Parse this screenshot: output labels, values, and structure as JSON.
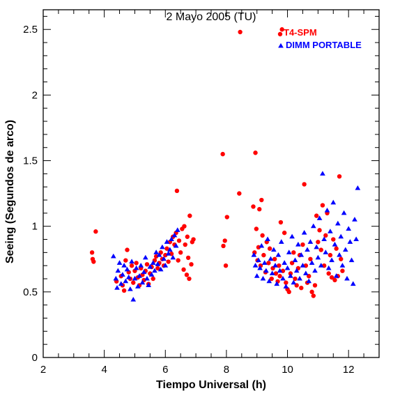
{
  "chart_data": {
    "type": "scatter",
    "title": "2 Mayo 2005 (TU)",
    "xlabel": "Tiempo Universal (h)",
    "ylabel": "Seeing (Segundos de arco)",
    "xlim": [
      2,
      13
    ],
    "ylim": [
      0,
      2.65
    ],
    "x_major_ticks": [
      2,
      4,
      6,
      8,
      10,
      12
    ],
    "y_major_ticks": [
      0,
      0.5,
      1,
      1.5,
      2,
      2.5
    ],
    "x_tick_labels": [
      "2",
      "4",
      "6",
      "8",
      "10",
      "12"
    ],
    "y_tick_labels": [
      "0",
      "0.5",
      "1",
      "1.5",
      "2",
      "2.5"
    ],
    "legend_placement": "top-right",
    "grid": false,
    "series": [
      {
        "name": "T4-SPM",
        "marker": "circle",
        "color": "#ff0000",
        "points": [
          [
            3.6,
            0.8
          ],
          [
            3.62,
            0.75
          ],
          [
            3.65,
            0.73
          ],
          [
            3.72,
            0.96
          ],
          [
            4.4,
            0.58
          ],
          [
            4.55,
            0.62
          ],
          [
            4.6,
            0.55
          ],
          [
            4.65,
            0.51
          ],
          [
            4.7,
            0.74
          ],
          [
            4.75,
            0.82
          ],
          [
            4.8,
            0.65
          ],
          [
            4.85,
            0.6
          ],
          [
            4.9,
            0.7
          ],
          [
            4.95,
            0.57
          ],
          [
            5.0,
            0.66
          ],
          [
            5.05,
            0.72
          ],
          [
            5.1,
            0.61
          ],
          [
            5.15,
            0.55
          ],
          [
            5.2,
            0.68
          ],
          [
            5.25,
            0.63
          ],
          [
            5.3,
            0.59
          ],
          [
            5.35,
            0.66
          ],
          [
            5.4,
            0.71
          ],
          [
            5.45,
            0.56
          ],
          [
            5.5,
            0.64
          ],
          [
            5.55,
            0.69
          ],
          [
            5.6,
            0.6
          ],
          [
            5.65,
            0.74
          ],
          [
            5.7,
            0.77
          ],
          [
            5.75,
            0.68
          ],
          [
            5.8,
            0.72
          ],
          [
            5.85,
            0.8
          ],
          [
            5.9,
            0.75
          ],
          [
            5.95,
            0.7
          ],
          [
            6.0,
            0.78
          ],
          [
            6.05,
            0.83
          ],
          [
            6.1,
            0.73
          ],
          [
            6.15,
            0.88
          ],
          [
            6.2,
            0.79
          ],
          [
            6.25,
            0.92
          ],
          [
            6.3,
            0.86
          ],
          [
            6.35,
            0.95
          ],
          [
            6.38,
            1.27
          ],
          [
            6.42,
            0.74
          ],
          [
            6.45,
            0.89
          ],
          [
            6.5,
            0.8
          ],
          [
            6.55,
            0.98
          ],
          [
            6.6,
            0.67
          ],
          [
            6.62,
            1.0
          ],
          [
            6.65,
            0.86
          ],
          [
            6.7,
            0.63
          ],
          [
            6.72,
            0.92
          ],
          [
            6.75,
            0.76
          ],
          [
            6.78,
            0.6
          ],
          [
            6.8,
            1.08
          ],
          [
            6.85,
            0.71
          ],
          [
            6.88,
            0.88
          ],
          [
            6.92,
            0.9
          ],
          [
            7.88,
            1.55
          ],
          [
            7.9,
            0.85
          ],
          [
            7.95,
            0.89
          ],
          [
            7.98,
            0.7
          ],
          [
            8.02,
            1.07
          ],
          [
            8.42,
            1.25
          ],
          [
            8.45,
            2.48
          ],
          [
            8.88,
            1.15
          ],
          [
            8.92,
            0.8
          ],
          [
            8.95,
            1.56
          ],
          [
            8.98,
            0.98
          ],
          [
            9.02,
            0.74
          ],
          [
            9.05,
            0.84
          ],
          [
            9.08,
            1.13
          ],
          [
            9.12,
            0.7
          ],
          [
            9.15,
            1.2
          ],
          [
            9.18,
            0.93
          ],
          [
            9.22,
            0.78
          ],
          [
            9.28,
            0.65
          ],
          [
            9.32,
            0.88
          ],
          [
            9.38,
            0.72
          ],
          [
            9.42,
            0.83
          ],
          [
            9.48,
            0.6
          ],
          [
            9.52,
            0.68
          ],
          [
            9.58,
            0.75
          ],
          [
            9.62,
            0.64
          ],
          [
            9.68,
            0.58
          ],
          [
            9.72,
            0.7
          ],
          [
            9.75,
            0.62
          ],
          [
            9.78,
            1.03
          ],
          [
            9.82,
            2.5
          ],
          [
            9.85,
            0.66
          ],
          [
            9.9,
            0.95
          ],
          [
            9.95,
            0.57
          ],
          [
            10.0,
            0.52
          ],
          [
            10.05,
            0.5
          ],
          [
            10.1,
            0.64
          ],
          [
            10.15,
            0.72
          ],
          [
            10.2,
            0.8
          ],
          [
            10.25,
            0.6
          ],
          [
            10.3,
            0.55
          ],
          [
            10.35,
            0.68
          ],
          [
            10.4,
            0.78
          ],
          [
            10.45,
            0.53
          ],
          [
            10.5,
            0.86
          ],
          [
            10.55,
            1.32
          ],
          [
            10.6,
            0.7
          ],
          [
            10.65,
            0.57
          ],
          [
            10.7,
            0.62
          ],
          [
            10.75,
            0.75
          ],
          [
            10.8,
            0.5
          ],
          [
            10.85,
            0.47
          ],
          [
            10.9,
            0.55
          ],
          [
            10.95,
            1.08
          ],
          [
            11.0,
            0.88
          ],
          [
            11.05,
            0.97
          ],
          [
            11.1,
            0.82
          ],
          [
            11.15,
            1.16
          ],
          [
            11.2,
            0.7
          ],
          [
            11.25,
            0.93
          ],
          [
            11.3,
            1.1
          ],
          [
            11.35,
            0.64
          ],
          [
            11.4,
            0.78
          ],
          [
            11.45,
            0.61
          ],
          [
            11.5,
            0.9
          ],
          [
            11.55,
            0.59
          ],
          [
            11.6,
            0.83
          ],
          [
            11.65,
            0.62
          ],
          [
            11.7,
            1.38
          ],
          [
            11.75,
            0.75
          ],
          [
            11.8,
            0.66
          ]
        ]
      },
      {
        "name": "DIMM PORTABLE",
        "marker": "triangle",
        "color": "#0000ff",
        "points": [
          [
            4.3,
            0.77
          ],
          [
            4.38,
            0.6
          ],
          [
            4.42,
            0.53
          ],
          [
            4.45,
            0.66
          ],
          [
            4.5,
            0.72
          ],
          [
            4.55,
            0.56
          ],
          [
            4.6,
            0.63
          ],
          [
            4.65,
            0.7
          ],
          [
            4.7,
            0.58
          ],
          [
            4.75,
            0.67
          ],
          [
            4.8,
            0.61
          ],
          [
            4.85,
            0.52
          ],
          [
            4.9,
            0.73
          ],
          [
            4.95,
            0.44
          ],
          [
            5.0,
            0.6
          ],
          [
            5.05,
            0.68
          ],
          [
            5.1,
            0.54
          ],
          [
            5.15,
            0.62
          ],
          [
            5.2,
            0.7
          ],
          [
            5.25,
            0.57
          ],
          [
            5.3,
            0.65
          ],
          [
            5.35,
            0.76
          ],
          [
            5.4,
            0.6
          ],
          [
            5.45,
            0.55
          ],
          [
            5.5,
            0.69
          ],
          [
            5.55,
            0.63
          ],
          [
            5.6,
            0.72
          ],
          [
            5.65,
            0.66
          ],
          [
            5.7,
            0.8
          ],
          [
            5.75,
            0.71
          ],
          [
            5.8,
            0.78
          ],
          [
            5.85,
            0.67
          ],
          [
            5.9,
            0.84
          ],
          [
            5.95,
            0.75
          ],
          [
            6.0,
            0.7
          ],
          [
            6.05,
            0.88
          ],
          [
            6.1,
            0.79
          ],
          [
            6.15,
            0.82
          ],
          [
            6.2,
            0.9
          ],
          [
            6.25,
            0.76
          ],
          [
            6.3,
            0.93
          ],
          [
            6.35,
            0.85
          ],
          [
            6.4,
            0.97
          ],
          [
            8.9,
            0.78
          ],
          [
            8.95,
            0.7
          ],
          [
            9.0,
            0.62
          ],
          [
            9.05,
            0.74
          ],
          [
            9.1,
            0.68
          ],
          [
            9.15,
            0.85
          ],
          [
            9.2,
            0.6
          ],
          [
            9.25,
            0.72
          ],
          [
            9.3,
            0.66
          ],
          [
            9.35,
            0.9
          ],
          [
            9.4,
            0.58
          ],
          [
            9.45,
            0.75
          ],
          [
            9.5,
            0.64
          ],
          [
            9.55,
            0.82
          ],
          [
            9.6,
            0.7
          ],
          [
            9.65,
            0.56
          ],
          [
            9.7,
            0.78
          ],
          [
            9.75,
            0.66
          ],
          [
            9.8,
            0.88
          ],
          [
            9.85,
            0.6
          ],
          [
            9.9,
            0.72
          ],
          [
            9.95,
            0.54
          ],
          [
            10.0,
            0.68
          ],
          [
            10.05,
            0.8
          ],
          [
            10.1,
            0.62
          ],
          [
            10.15,
            0.92
          ],
          [
            10.2,
            0.57
          ],
          [
            10.25,
            0.74
          ],
          [
            10.3,
            0.66
          ],
          [
            10.35,
            0.86
          ],
          [
            10.4,
            0.6
          ],
          [
            10.45,
            0.78
          ],
          [
            10.5,
            0.7
          ],
          [
            10.55,
            0.95
          ],
          [
            10.6,
            0.64
          ],
          [
            10.65,
            0.82
          ],
          [
            10.7,
            0.58
          ],
          [
            10.75,
            0.88
          ],
          [
            10.8,
            0.72
          ],
          [
            10.85,
            1.0
          ],
          [
            10.9,
            0.66
          ],
          [
            10.95,
            0.84
          ],
          [
            11.0,
            0.76
          ],
          [
            11.05,
            1.06
          ],
          [
            11.1,
            0.7
          ],
          [
            11.15,
            1.4
          ],
          [
            11.2,
            0.9
          ],
          [
            11.25,
            0.8
          ],
          [
            11.3,
            1.12
          ],
          [
            11.35,
            0.68
          ],
          [
            11.4,
            0.96
          ],
          [
            11.45,
            0.74
          ],
          [
            11.5,
            1.18
          ],
          [
            11.55,
            0.86
          ],
          [
            11.6,
            0.62
          ],
          [
            11.65,
            1.02
          ],
          [
            11.7,
            0.78
          ],
          [
            11.75,
            0.92
          ],
          [
            11.8,
            0.7
          ],
          [
            11.85,
            1.1
          ],
          [
            11.9,
            0.82
          ],
          [
            11.95,
            0.6
          ],
          [
            12.0,
            0.98
          ],
          [
            12.05,
            0.88
          ],
          [
            12.1,
            0.74
          ],
          [
            12.15,
            0.56
          ],
          [
            12.2,
            1.05
          ],
          [
            12.25,
            0.9
          ],
          [
            12.3,
            1.29
          ]
        ]
      }
    ]
  }
}
